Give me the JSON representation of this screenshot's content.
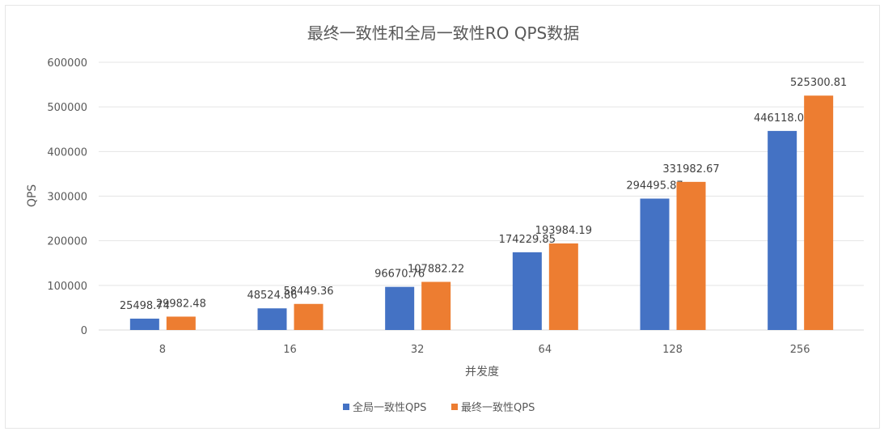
{
  "chart_data": {
    "type": "bar",
    "title": "最终一致性和全局一致性RO QPS数据",
    "xlabel": "并发度",
    "ylabel": "QPS",
    "categories": [
      "8",
      "16",
      "32",
      "64",
      "128",
      "256"
    ],
    "ylim": [
      0,
      600000
    ],
    "yticks": [
      "0",
      "100000",
      "200000",
      "300000",
      "400000",
      "500000",
      "600000"
    ],
    "grid": true,
    "legend_position": "bottom",
    "series": [
      {
        "name": "全局一致性QPS",
        "color": "#4472C4",
        "values": [
          25498.74,
          48524.86,
          96670.76,
          174229.85,
          294495.87,
          446118.03
        ],
        "labels": [
          "25498.74",
          "48524.86",
          "96670.76",
          "174229.85",
          "294495.87",
          "446118.03"
        ]
      },
      {
        "name": "最终一致性QPS",
        "color": "#ED7D31",
        "values": [
          29982.48,
          58449.36,
          107882.22,
          193984.19,
          331982.67,
          525300.81
        ],
        "labels": [
          "29982.48",
          "58449.36",
          "107882.22",
          "193984.19",
          "331982.67",
          "525300.81"
        ]
      }
    ]
  }
}
